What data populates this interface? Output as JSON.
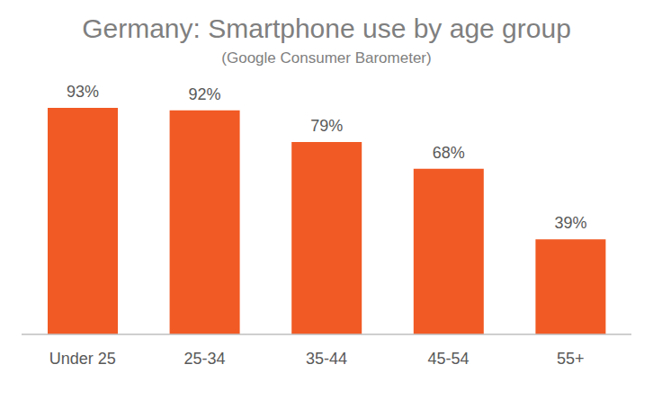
{
  "chart_data": {
    "type": "bar",
    "title": "Germany: Smartphone use by age group",
    "subtitle": "(Google Consumer Barometer)",
    "categories": [
      "Under 25",
      "25-34",
      "35-44",
      "45-54",
      "55+"
    ],
    "values": [
      93,
      92,
      79,
      68,
      39
    ],
    "value_labels": [
      "93%",
      "92%",
      "79%",
      "68%",
      "39%"
    ],
    "color": "#f15a24",
    "data_labels": true,
    "tick_labels": "x",
    "grid": false
  }
}
